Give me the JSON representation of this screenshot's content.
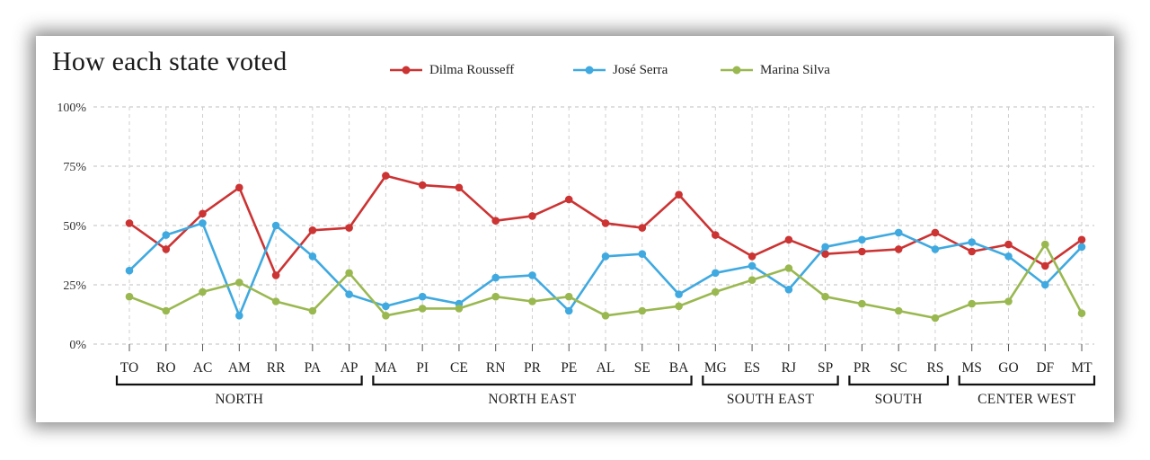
{
  "chart_data": {
    "type": "line",
    "title": "How each state voted",
    "categories": [
      "TO",
      "RO",
      "AC",
      "AM",
      "RR",
      "PA",
      "AP",
      "MA",
      "PI",
      "CE",
      "RN",
      "PR",
      "PE",
      "AL",
      "SE",
      "BA",
      "MG",
      "ES",
      "RJ",
      "SP",
      "PR",
      "SC",
      "RS",
      "MS",
      "GO",
      "DF",
      "MT"
    ],
    "series": [
      {
        "name": "Dilma Rousseff",
        "color": "#cc3333",
        "values": [
          51,
          40,
          55,
          66,
          29,
          48,
          49,
          71,
          67,
          66,
          52,
          54,
          61,
          51,
          49,
          63,
          46,
          37,
          44,
          38,
          39,
          40,
          47,
          39,
          42,
          33,
          44
        ]
      },
      {
        "name": "José Serra",
        "color": "#3fa9e0",
        "values": [
          31,
          46,
          51,
          12,
          50,
          37,
          21,
          16,
          20,
          17,
          28,
          29,
          14,
          37,
          38,
          21,
          30,
          33,
          23,
          41,
          44,
          47,
          40,
          43,
          37,
          25,
          41
        ]
      },
      {
        "name": "Marina Silva",
        "color": "#9ab850",
        "values": [
          20,
          14,
          22,
          26,
          18,
          14,
          30,
          12,
          15,
          15,
          20,
          18,
          20,
          12,
          14,
          16,
          22,
          27,
          32,
          20,
          17,
          14,
          11,
          17,
          18,
          42,
          13
        ]
      }
    ],
    "yticks": [
      "0%",
      "25%",
      "50%",
      "75%",
      "100%"
    ],
    "ylim": [
      0,
      100
    ],
    "groups": [
      {
        "label": "NORTH",
        "from": 0,
        "to": 6
      },
      {
        "label": "NORTH EAST",
        "from": 7,
        "to": 15
      },
      {
        "label": "SOUTH EAST",
        "from": 16,
        "to": 19
      },
      {
        "label": "SOUTH",
        "from": 20,
        "to": 22
      },
      {
        "label": "CENTER WEST",
        "from": 23,
        "to": 26
      }
    ],
    "grid": true,
    "legend_position": "top"
  }
}
